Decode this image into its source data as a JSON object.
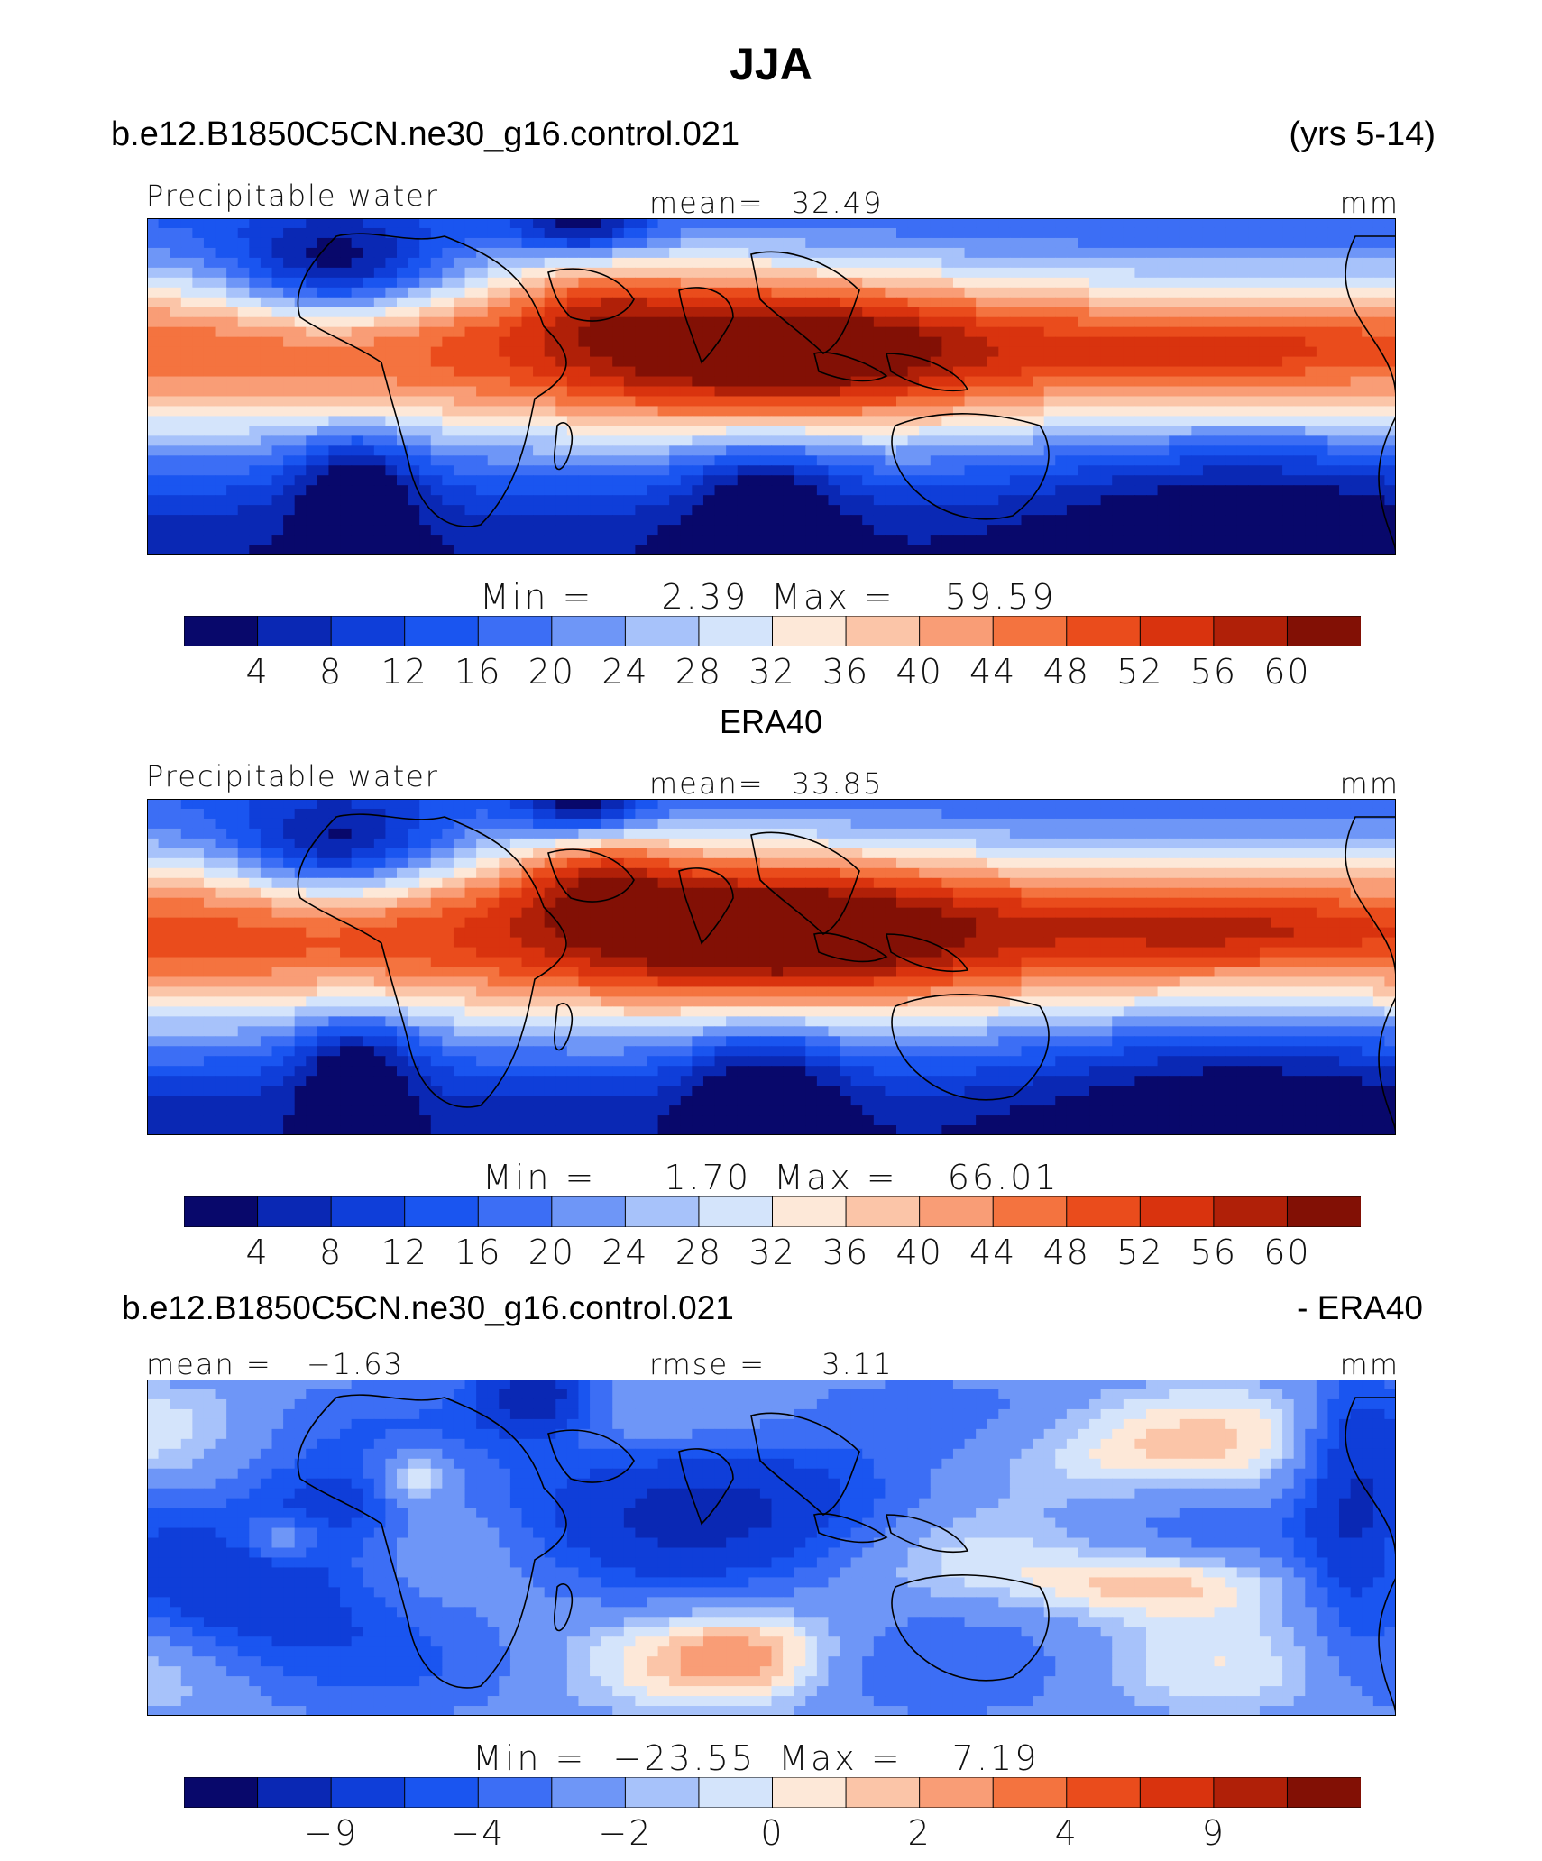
{
  "header": {
    "title": "JJA",
    "case_name": "b.e12.B1850C5CN.ne30_g16.control.021",
    "years": "(yrs 5-14)",
    "obs_title": "ERA40",
    "diff_case": "b.e12.B1850C5CN.ne30_g16.control.021",
    "diff_obs": "- ERA40"
  },
  "colors": {
    "full_scale": [
      "#08086b",
      "#0a28b4",
      "#0f3ed9",
      "#1a55f0",
      "#3c6ef5",
      "#6e96f7",
      "#a7c2fa",
      "#d4e4fb",
      "#fde8d8",
      "#fbc5a8",
      "#f99d76",
      "#f4733f",
      "#ea4c1c",
      "#d9330e",
      "#b02008",
      "#821005"
    ],
    "diff_scale": [
      "#08086b",
      "#0a28b4",
      "#0f3ed9",
      "#1a55f0",
      "#3c6ef5",
      "#6e96f7",
      "#a7c2fa",
      "#d4e4fb",
      "#fde8d8",
      "#fbc5a8",
      "#f99d76",
      "#f4733f",
      "#ea4c1c",
      "#d9330e",
      "#b02008",
      "#821005"
    ]
  },
  "chart_data": [
    {
      "type": "heatmap",
      "field": "Precipitable water",
      "units": "mm",
      "mean_label": "mean=",
      "mean": "32.49",
      "min_label": "Min =",
      "min": "2.39",
      "max_label": "Max =",
      "max": "59.59",
      "colorbar_ticks": [
        "4",
        "8",
        "12",
        "16",
        "20",
        "24",
        "28",
        "32",
        "36",
        "40",
        "44",
        "48",
        "52",
        "56",
        "60"
      ]
    },
    {
      "type": "heatmap",
      "field": "Precipitable water",
      "units": "mm",
      "mean_label": "mean=",
      "mean": "33.85",
      "min_label": "Min =",
      "min": "1.70",
      "max_label": "Max =",
      "max": "66.01",
      "colorbar_ticks": [
        "4",
        "8",
        "12",
        "16",
        "20",
        "24",
        "28",
        "32",
        "36",
        "40",
        "44",
        "48",
        "52",
        "56",
        "60"
      ]
    },
    {
      "type": "heatmap",
      "units": "mm",
      "mean_label": "mean =",
      "mean": "−1.63",
      "rmse_label": "rmse =",
      "rmse": "3.11",
      "min_label": "Min =",
      "min": "−23.55",
      "max_label": "Max =",
      "max": "7.19",
      "colorbar_ticks": [
        "−9",
        "",
        "−4",
        "",
        "−2",
        "",
        "0",
        "",
        "2",
        "",
        "4",
        "",
        "9"
      ]
    }
  ]
}
